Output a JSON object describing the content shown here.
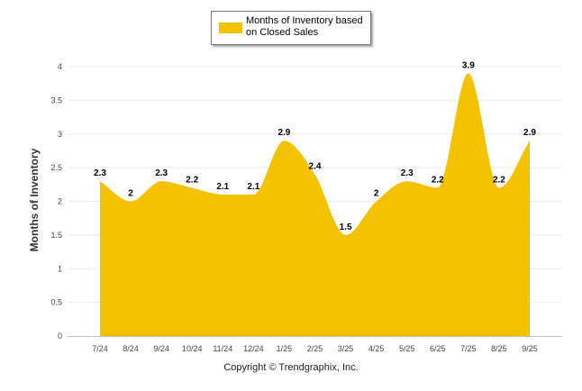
{
  "chart_data": {
    "type": "area",
    "title": "",
    "xlabel": "",
    "ylabel": "Months of Inventory",
    "ylim": [
      0,
      4
    ],
    "yticks": [
      0,
      0.5,
      1,
      1.5,
      2,
      2.5,
      3,
      3.5,
      4
    ],
    "ytick_labels": [
      "0",
      "0.5",
      "1",
      "1.5",
      "2",
      "2.5",
      "3",
      "3.5",
      "4"
    ],
    "grid": true,
    "legend_position": "top-center",
    "categories": [
      "7/24",
      "8/24",
      "9/24",
      "10/24",
      "11/24",
      "12/24",
      "1/25",
      "2/25",
      "3/25",
      "4/25",
      "5/25",
      "6/25",
      "7/25",
      "8/25",
      "9/25"
    ],
    "series": [
      {
        "name": "Months of Inventory based on Closed Sales",
        "color": "#f5c200",
        "values": [
          2.3,
          2,
          2.3,
          2.2,
          2.1,
          2.1,
          2.9,
          2.4,
          1.5,
          2,
          2.3,
          2.2,
          3.9,
          2.2,
          2.9
        ],
        "labels": [
          "2.3",
          "2",
          "2.3",
          "2.2",
          "2.1",
          "2.1",
          "2.9",
          "2.4",
          "1.5",
          "2",
          "2.3",
          "2.2",
          "3.9",
          "2.2",
          "2.9"
        ]
      }
    ]
  },
  "legend": {
    "label": "Months of Inventory based on Closed Sales"
  },
  "footer": {
    "copyright": "Copyright © Trendgraphix, Inc."
  }
}
